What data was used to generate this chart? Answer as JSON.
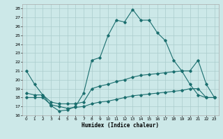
{
  "xlabel": "Humidex (Indice chaleur)",
  "bg_color": "#cce8e8",
  "grid_color": "#aacccc",
  "line_color": "#1a6e6e",
  "xlim": [
    -0.5,
    23.5
  ],
  "ylim": [
    16,
    28.5
  ],
  "yticks": [
    16,
    17,
    18,
    19,
    20,
    21,
    22,
    23,
    24,
    25,
    26,
    27,
    28
  ],
  "xticks": [
    0,
    1,
    2,
    3,
    4,
    5,
    6,
    7,
    8,
    9,
    10,
    11,
    12,
    13,
    14,
    15,
    16,
    17,
    18,
    19,
    20,
    21,
    22,
    23
  ],
  "series1_x": [
    0,
    1,
    2,
    3,
    4,
    5,
    6,
    7,
    8,
    9,
    10,
    11,
    12,
    13,
    14,
    15,
    16,
    17,
    18,
    19,
    20,
    21,
    22,
    23
  ],
  "series1_y": [
    21.0,
    19.5,
    18.3,
    17.1,
    16.5,
    16.6,
    17.0,
    18.5,
    22.2,
    22.5,
    25.0,
    26.7,
    26.5,
    27.9,
    26.7,
    26.7,
    25.3,
    24.4,
    22.2,
    21.0,
    19.5,
    18.3,
    18.0,
    18.0
  ],
  "series2_x": [
    0,
    1,
    2,
    3,
    4,
    5,
    6,
    7,
    8,
    9,
    10,
    11,
    12,
    13,
    14,
    15,
    16,
    17,
    18,
    19,
    20,
    21,
    22,
    23
  ],
  "series2_y": [
    18.5,
    18.3,
    18.3,
    17.5,
    17.3,
    17.3,
    17.3,
    17.5,
    19.0,
    19.3,
    19.5,
    19.8,
    20.0,
    20.3,
    20.5,
    20.6,
    20.7,
    20.8,
    20.9,
    21.0,
    21.0,
    22.2,
    19.5,
    18.0
  ],
  "series3_x": [
    0,
    1,
    2,
    3,
    4,
    5,
    6,
    7,
    8,
    9,
    10,
    11,
    12,
    13,
    14,
    15,
    16,
    17,
    18,
    19,
    20,
    21,
    22,
    23
  ],
  "series3_y": [
    18.0,
    18.0,
    18.0,
    17.2,
    17.0,
    16.8,
    16.9,
    17.0,
    17.3,
    17.5,
    17.6,
    17.8,
    18.0,
    18.2,
    18.3,
    18.4,
    18.5,
    18.6,
    18.7,
    18.8,
    19.0,
    19.0,
    18.0,
    18.0
  ]
}
